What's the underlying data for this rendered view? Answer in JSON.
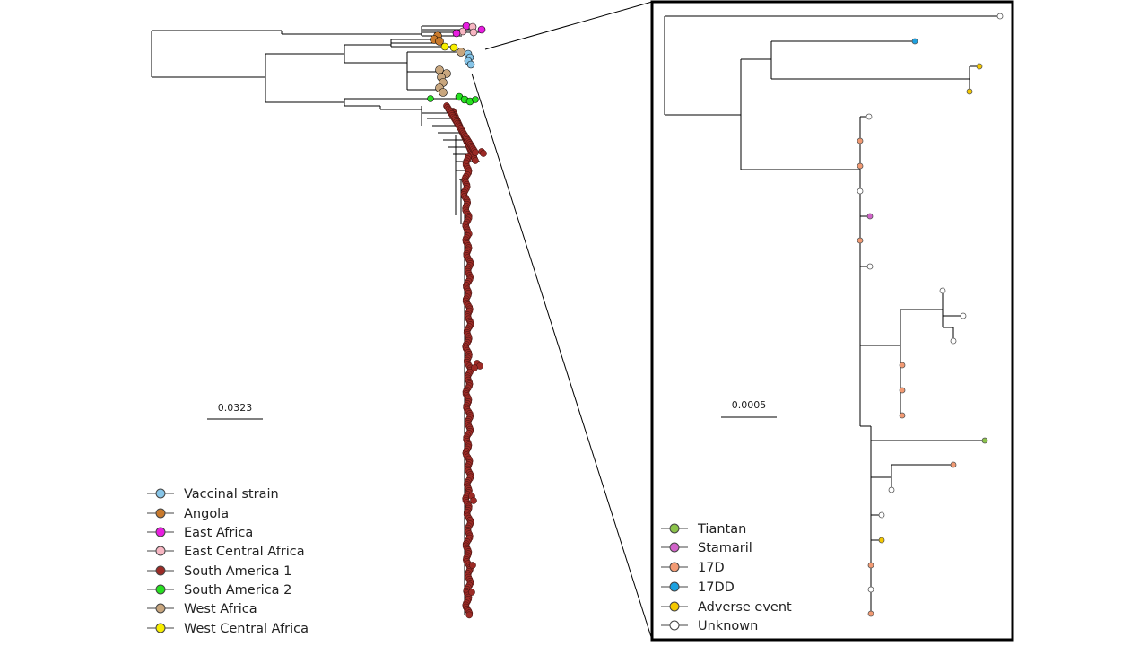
{
  "left_tree": {
    "scale_label": "0.0323",
    "legend": [
      {
        "label": "Vaccinal strain",
        "color": "#87c5e8"
      },
      {
        "label": "Angola",
        "color": "#c97a2c"
      },
      {
        "label": "East Africa",
        "color": "#e81ee0"
      },
      {
        "label": "East Central Africa",
        "color": "#f7b6c2"
      },
      {
        "label": "South America 1",
        "color": "#9c2b26"
      },
      {
        "label": "South America 2",
        "color": "#27e020"
      },
      {
        "label": "West Africa",
        "color": "#c8a67e"
      },
      {
        "label": "West Central Africa",
        "color": "#f7ee00"
      }
    ]
  },
  "zoom_tree": {
    "scale_label": "0.0005",
    "legend": [
      {
        "label": "Tiantan",
        "color": "#8bc34a"
      },
      {
        "label": "Stamaril",
        "color": "#d163c9"
      },
      {
        "label": "17D",
        "color": "#f29a73"
      },
      {
        "label": "17DD",
        "color": "#1da1e0"
      },
      {
        "label": "Adverse event",
        "color": "#f5c800"
      },
      {
        "label": "Unknown",
        "color": "#ffffff"
      }
    ]
  }
}
